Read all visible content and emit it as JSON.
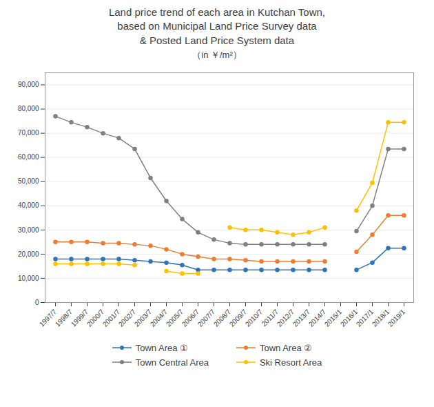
{
  "chart_data": {
    "type": "line",
    "title": "Land price trend of each area in Kutchan Town,\nbased on Municipal Land Price Survey data\n& Posted Land Price System data",
    "subtitle": "（in ￥/m²）",
    "categories": [
      "1997/7",
      "1998/7",
      "1999/7",
      "2000/7",
      "2001/7",
      "2002/7",
      "2003/7",
      "2004/7",
      "2005/7",
      "2006/7",
      "2007/7",
      "2008/7",
      "2009/7",
      "2010/7",
      "2011/7",
      "2012/7",
      "2013/7",
      "2014/7",
      "2015/1",
      "2016/1",
      "2017/1",
      "2018/1",
      "2019/1"
    ],
    "series": [
      {
        "name": "Town Area ①",
        "color": "#2E75B6",
        "values": [
          18000,
          18000,
          18000,
          18000,
          18000,
          17500,
          17000,
          16500,
          15500,
          13500,
          13500,
          13500,
          13500,
          13500,
          13500,
          13500,
          13500,
          13500,
          null,
          13500,
          16500,
          22500,
          22500
        ]
      },
      {
        "name": "Town Area ②",
        "color": "#ED7D31",
        "values": [
          25000,
          25000,
          25000,
          24500,
          24500,
          24000,
          23500,
          22000,
          20000,
          19000,
          18000,
          18000,
          17500,
          17000,
          17000,
          17000,
          17000,
          17000,
          null,
          21000,
          28000,
          36000,
          36000
        ]
      },
      {
        "name": "Town Central Area",
        "color": "#808080",
        "values": [
          77000,
          74500,
          72500,
          70000,
          68000,
          63500,
          51500,
          42000,
          34500,
          29000,
          26000,
          24500,
          24000,
          24000,
          24000,
          24000,
          24000,
          24000,
          null,
          29500,
          40000,
          63500,
          63500
        ]
      },
      {
        "name": "Ski Resort Area",
        "color": "#FFC000",
        "values": [
          16000,
          16000,
          16000,
          16000,
          16000,
          15500,
          null,
          13000,
          12000,
          12000,
          null,
          31000,
          30000,
          30000,
          29000,
          28000,
          29000,
          31000,
          null,
          38000,
          49500,
          74500,
          74500
        ]
      }
    ],
    "ylim": [
      0,
      95000
    ],
    "yticks": [
      0,
      {
        "value": 10000,
        "label": "10,000"
      },
      {
        "value": 20000,
        "label": "20,000"
      },
      {
        "value": 30000,
        "label": "30,000"
      },
      {
        "value": 40000,
        "label": "40,000"
      },
      {
        "value": 50000,
        "label": "50,000"
      },
      {
        "value": 60000,
        "label": "60,000"
      },
      {
        "value": 70000,
        "label": "70,000"
      },
      {
        "value": 80000,
        "label": "80,000"
      },
      {
        "value": 90000,
        "label": "90,000"
      }
    ],
    "grid": true,
    "legend": "bottom",
    "marker": "circle"
  }
}
